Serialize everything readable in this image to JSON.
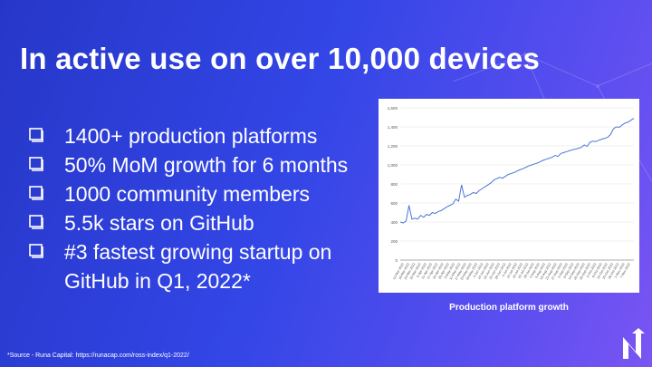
{
  "slide": {
    "title": "In active use on over 10,000 devices",
    "bullets": [
      "1400+ production platforms",
      "50% MoM growth for 6 months",
      "1000 community members",
      "5.5k stars on GitHub",
      "#3 fastest growing startup on\nGitHub in Q1, 2022*"
    ],
    "chart_caption": "Production platform growth",
    "footnote": "*Source - Runa Capital: https://runacap.com/ross-index/q1-2022/",
    "colors": {
      "accent": "#3346e6",
      "line": "#4a76d4",
      "background_end": "#7a55f3"
    },
    "icons": {
      "bullet": "checkbox-outline-icon",
      "logo": "arrow-n-logo-icon"
    }
  },
  "chart_data": {
    "type": "line",
    "title": "",
    "xlabel": "",
    "ylabel": "",
    "ylim": [
      0,
      1600
    ],
    "yticks": [
      0,
      200,
      400,
      600,
      800,
      1000,
      1200,
      1400,
      1600
    ],
    "ytick_labels": [
      "0",
      "200",
      "400",
      "600",
      "800",
      "1,000",
      "1,200",
      "1,400",
      "1,600"
    ],
    "xtick_labels": [
      "12-Mar-2022",
      "18-Mar-2022",
      "24-Mar-2022",
      "30-Mar-2022",
      "5-Apr-2022",
      "11-Apr-2022",
      "17-Apr-2022",
      "23-Apr-2022",
      "29-Apr-2022",
      "5-May-2022",
      "11-May-2022",
      "17-May-2022",
      "23-May-2022",
      "29-May-2022",
      "4-Jun-2022",
      "10-Jun-2022",
      "16-Jun-2022",
      "22-Jun-2022",
      "28-Jun-2022",
      "4-Jul-2022",
      "10-Jul-2022",
      "16-Jul-2022",
      "22-Jul-2022",
      "28-Jul-2022",
      "3-Aug-2022",
      "9-Aug-2022",
      "15-Aug-2022",
      "21-Aug-2022",
      "27-Aug-2022",
      "2-Sep-2022",
      "8-Sep-2022",
      "14-Sep-2022",
      "20-Sep-2022",
      "26-Sep-2022",
      "2-Oct-2022",
      "8-Oct-2022",
      "14-Oct-2022",
      "20-Oct-2022",
      "26-Oct-2022",
      "1-Nov-2022",
      "7-Nov-2022"
    ],
    "grid": true,
    "series": [
      {
        "values": [
          400,
          390,
          410,
          575,
          430,
          440,
          430,
          470,
          450,
          480,
          470,
          500,
          490,
          510,
          520,
          540,
          560,
          575,
          590,
          640,
          620,
          790,
          660,
          680,
          690,
          710,
          700,
          730,
          750,
          770,
          790,
          810,
          840,
          855,
          870,
          860,
          880,
          900,
          910,
          920,
          935,
          950,
          960,
          975,
          990,
          1000,
          1010,
          1020,
          1035,
          1050,
          1060,
          1070,
          1080,
          1100,
          1090,
          1120,
          1130,
          1140,
          1150,
          1160,
          1165,
          1175,
          1185,
          1210,
          1195,
          1240,
          1250,
          1245,
          1260,
          1270,
          1280,
          1290,
          1320,
          1380,
          1400,
          1395,
          1420,
          1440,
          1450,
          1470,
          1490
        ]
      }
    ]
  }
}
